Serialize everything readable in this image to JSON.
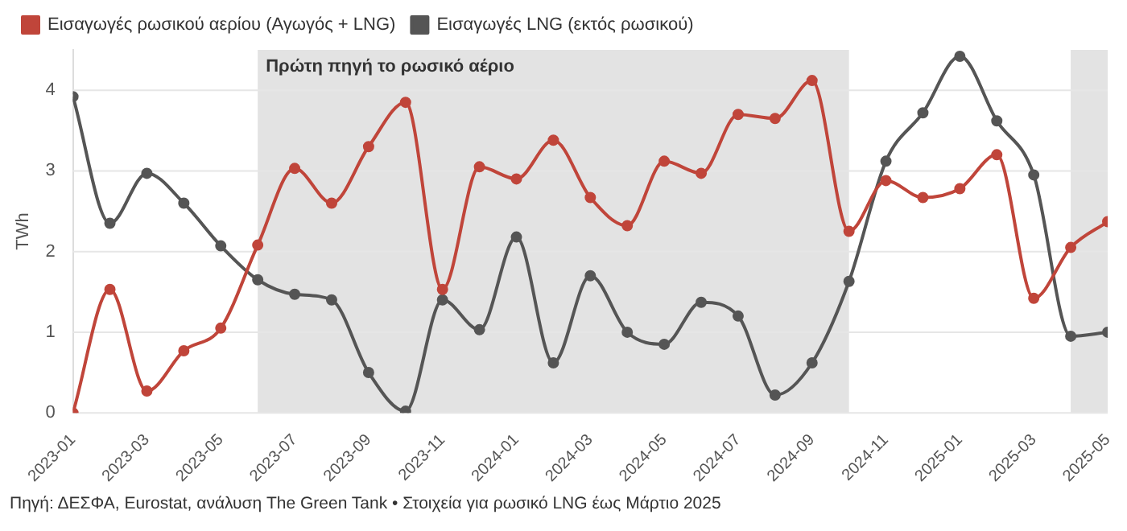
{
  "chart_data": {
    "type": "line",
    "ylabel": "TWh",
    "x": [
      "2023-01",
      "2023-02",
      "2023-03",
      "2023-04",
      "2023-05",
      "2023-06",
      "2023-07",
      "2023-08",
      "2023-09",
      "2023-10",
      "2023-11",
      "2023-12",
      "2024-01",
      "2024-02",
      "2024-03",
      "2024-04",
      "2024-05",
      "2024-06",
      "2024-07",
      "2024-08",
      "2024-09",
      "2024-10",
      "2024-11",
      "2024-12",
      "2025-01",
      "2025-02",
      "2025-03",
      "2025-04",
      "2025-05"
    ],
    "series": [
      {
        "name": "Εισαγωγές ρωσικού αερίου (Αγωγός + LNG)",
        "color": "#c0453a",
        "values": [
          0,
          1.53,
          0.27,
          0.77,
          1.05,
          2.08,
          3.03,
          2.6,
          3.3,
          3.85,
          1.53,
          3.05,
          2.9,
          3.38,
          2.67,
          2.32,
          3.12,
          2.97,
          3.7,
          3.65,
          4.12,
          2.25,
          2.88,
          2.67,
          2.78,
          3.2,
          1.42,
          2.05,
          2.37
        ]
      },
      {
        "name": "Εισαγωγές LNG (εκτός ρωσικού)",
        "color": "#555555",
        "values": [
          3.92,
          2.35,
          2.97,
          2.6,
          2.07,
          1.65,
          1.47,
          1.4,
          0.5,
          0.02,
          1.4,
          1.03,
          2.18,
          0.62,
          1.7,
          1.0,
          0.85,
          1.37,
          1.2,
          0.22,
          0.62,
          1.63,
          3.12,
          3.72,
          4.42,
          3.62,
          2.95,
          0.95,
          1.0
        ]
      }
    ],
    "xlim": [
      "2023-01",
      "2025-05"
    ],
    "xticks": [
      "2023-01",
      "2023-03",
      "2023-05",
      "2023-07",
      "2023-09",
      "2023-11",
      "2024-01",
      "2024-03",
      "2024-05",
      "2024-07",
      "2024-09",
      "2024-11",
      "2025-01",
      "2025-03",
      "2025-05"
    ],
    "ylim": [
      0,
      4.5
    ],
    "yticks": [
      0,
      1,
      2,
      3,
      4
    ],
    "bands": [
      {
        "axis": "x",
        "from": "2023-06",
        "to": "2024-10",
        "label": "Πρώτη πηγή το ρωσικό αέριο",
        "color": "#e3e3e3"
      },
      {
        "axis": "x",
        "from": "2025-04",
        "to": "2025-05",
        "color": "#e3e3e3"
      }
    ],
    "grid": "y",
    "legend": "top left",
    "marker": "circle",
    "line_style": "solid",
    "annotations": [
      "Πηγή: ΔΕΣΦΑ, Eurostat, ανάλυση The Green Tank • Στοιχεία για ρωσικό LNG έως Μάρτιο 2025"
    ]
  }
}
